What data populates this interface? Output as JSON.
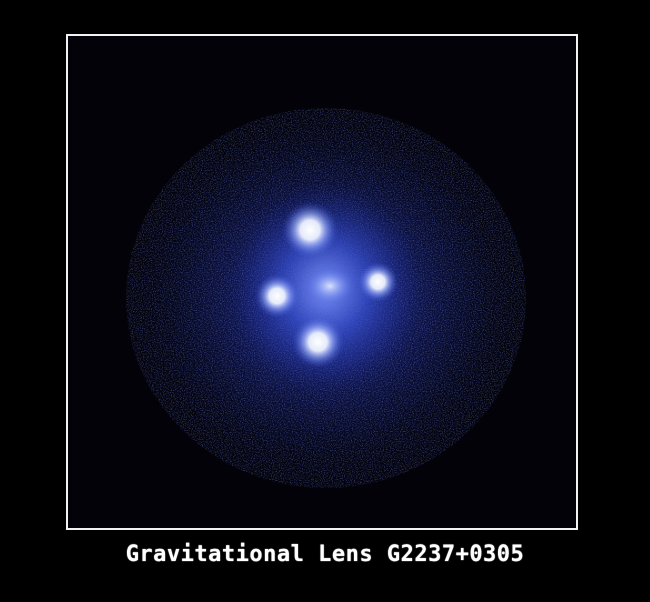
{
  "image": {
    "caption": "Gravitational Lens G2237+0305",
    "colors": {
      "background": "#000000",
      "frame": "#f2f2f2",
      "glow": "#1a2a9a",
      "halo": "#3b55d8",
      "core": "#eef3ff"
    },
    "features": [
      "lensing-galaxy-core",
      "quasar-image-top",
      "quasar-image-left",
      "quasar-image-right",
      "quasar-image-bottom"
    ]
  }
}
